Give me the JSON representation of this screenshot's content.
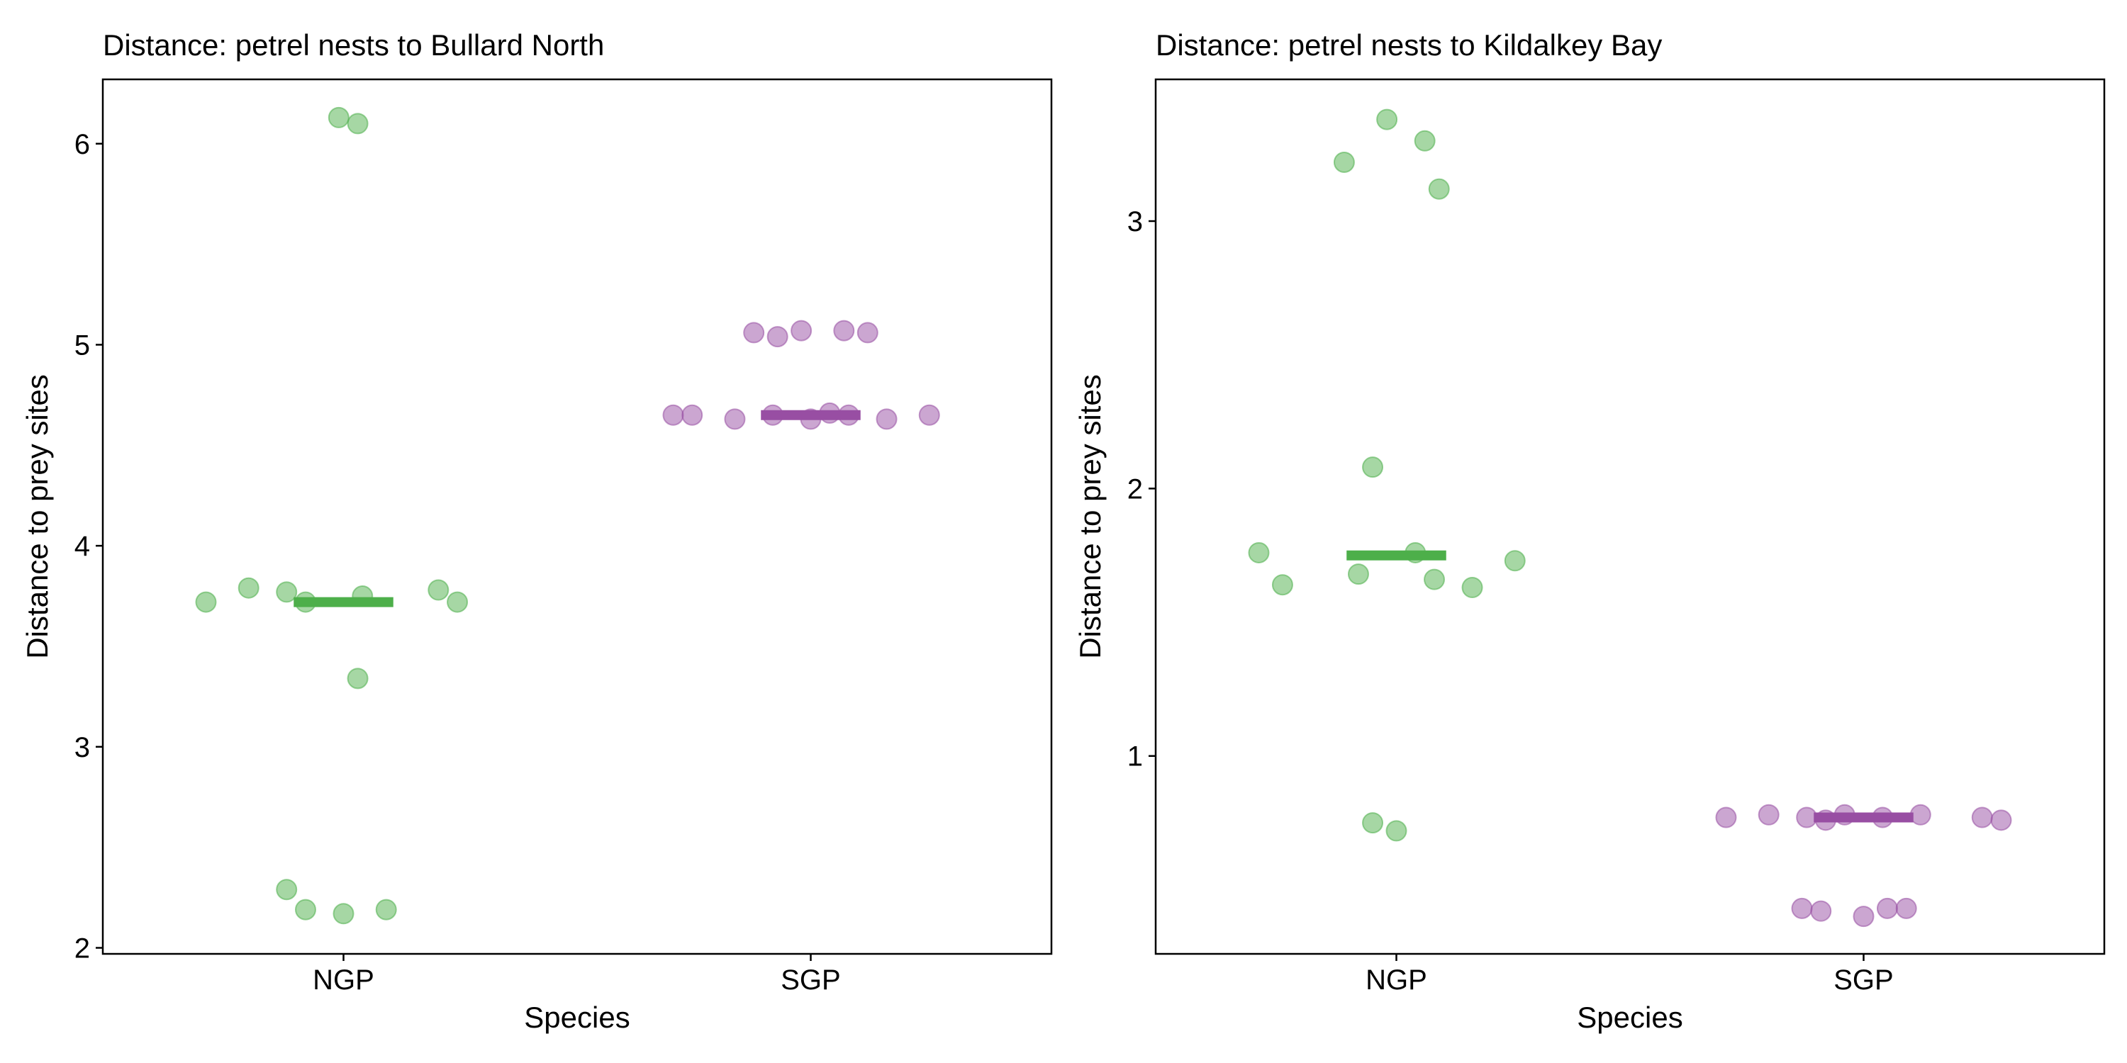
{
  "chart_data": [
    {
      "type": "scatter",
      "title": "Distance: petrel nests to Bullard North",
      "xlabel": "Species",
      "ylabel": "Distance to prey sites",
      "categories": [
        "NGP",
        "SGP"
      ],
      "ylim": [
        1.97,
        6.32
      ],
      "yticks": [
        "2",
        "3",
        "4",
        "5",
        "6"
      ],
      "grid": false,
      "colors": {
        "NGP": "#4daf4a",
        "SGP": "#984ea3"
      },
      "series": [
        {
          "name": "NGP",
          "median": 3.72,
          "points": [
            {
              "x": -0.29,
              "y": 3.72
            },
            {
              "x": -0.2,
              "y": 3.79
            },
            {
              "x": -0.12,
              "y": 3.77
            },
            {
              "x": -0.08,
              "y": 3.72
            },
            {
              "x": 0.04,
              "y": 3.75
            },
            {
              "x": 0.2,
              "y": 3.78
            },
            {
              "x": 0.24,
              "y": 3.72
            },
            {
              "x": 0.03,
              "y": 3.34
            },
            {
              "x": -0.01,
              "y": 6.13
            },
            {
              "x": 0.03,
              "y": 6.1
            },
            {
              "x": -0.12,
              "y": 2.29
            },
            {
              "x": -0.08,
              "y": 2.19
            },
            {
              "x": 0.0,
              "y": 2.17
            },
            {
              "x": 0.09,
              "y": 2.19
            }
          ]
        },
        {
          "name": "SGP",
          "median": 4.65,
          "points": [
            {
              "x": -0.29,
              "y": 4.65
            },
            {
              "x": -0.25,
              "y": 4.65
            },
            {
              "x": -0.16,
              "y": 4.63
            },
            {
              "x": -0.08,
              "y": 4.65
            },
            {
              "x": 0.0,
              "y": 4.63
            },
            {
              "x": 0.04,
              "y": 4.66
            },
            {
              "x": 0.08,
              "y": 4.65
            },
            {
              "x": 0.16,
              "y": 4.63
            },
            {
              "x": 0.25,
              "y": 4.65
            },
            {
              "x": -0.12,
              "y": 5.06
            },
            {
              "x": -0.07,
              "y": 5.04
            },
            {
              "x": -0.02,
              "y": 5.07
            },
            {
              "x": 0.07,
              "y": 5.07
            },
            {
              "x": 0.12,
              "y": 5.06
            }
          ]
        }
      ]
    },
    {
      "type": "scatter",
      "title": "Distance: petrel nests to Kildalkey Bay",
      "xlabel": "Species",
      "ylabel": "Distance to prey sites",
      "categories": [
        "NGP",
        "SGP"
      ],
      "ylim": [
        0.26,
        3.53
      ],
      "yticks": [
        "1",
        "2",
        "3"
      ],
      "grid": false,
      "colors": {
        "NGP": "#4daf4a",
        "SGP": "#984ea3"
      },
      "series": [
        {
          "name": "NGP",
          "median": 1.75,
          "points": [
            {
              "x": -0.29,
              "y": 1.76
            },
            {
              "x": -0.24,
              "y": 1.64
            },
            {
              "x": -0.08,
              "y": 1.68
            },
            {
              "x": 0.04,
              "y": 1.76
            },
            {
              "x": 0.08,
              "y": 1.66
            },
            {
              "x": 0.16,
              "y": 1.63
            },
            {
              "x": 0.25,
              "y": 1.73
            },
            {
              "x": -0.05,
              "y": 2.08
            },
            {
              "x": -0.11,
              "y": 3.22
            },
            {
              "x": -0.02,
              "y": 3.38
            },
            {
              "x": 0.06,
              "y": 3.3
            },
            {
              "x": 0.09,
              "y": 3.12
            },
            {
              "x": -0.05,
              "y": 0.75
            },
            {
              "x": 0.0,
              "y": 0.72
            }
          ]
        },
        {
          "name": "SGP",
          "median": 0.77,
          "points": [
            {
              "x": -0.29,
              "y": 0.77
            },
            {
              "x": -0.2,
              "y": 0.78
            },
            {
              "x": -0.12,
              "y": 0.77
            },
            {
              "x": -0.08,
              "y": 0.76
            },
            {
              "x": -0.04,
              "y": 0.78
            },
            {
              "x": 0.04,
              "y": 0.77
            },
            {
              "x": 0.12,
              "y": 0.78
            },
            {
              "x": 0.25,
              "y": 0.77
            },
            {
              "x": 0.29,
              "y": 0.76
            },
            {
              "x": -0.13,
              "y": 0.43
            },
            {
              "x": -0.09,
              "y": 0.42
            },
            {
              "x": 0.0,
              "y": 0.4
            },
            {
              "x": 0.05,
              "y": 0.43
            },
            {
              "x": 0.09,
              "y": 0.43
            }
          ]
        }
      ]
    }
  ]
}
